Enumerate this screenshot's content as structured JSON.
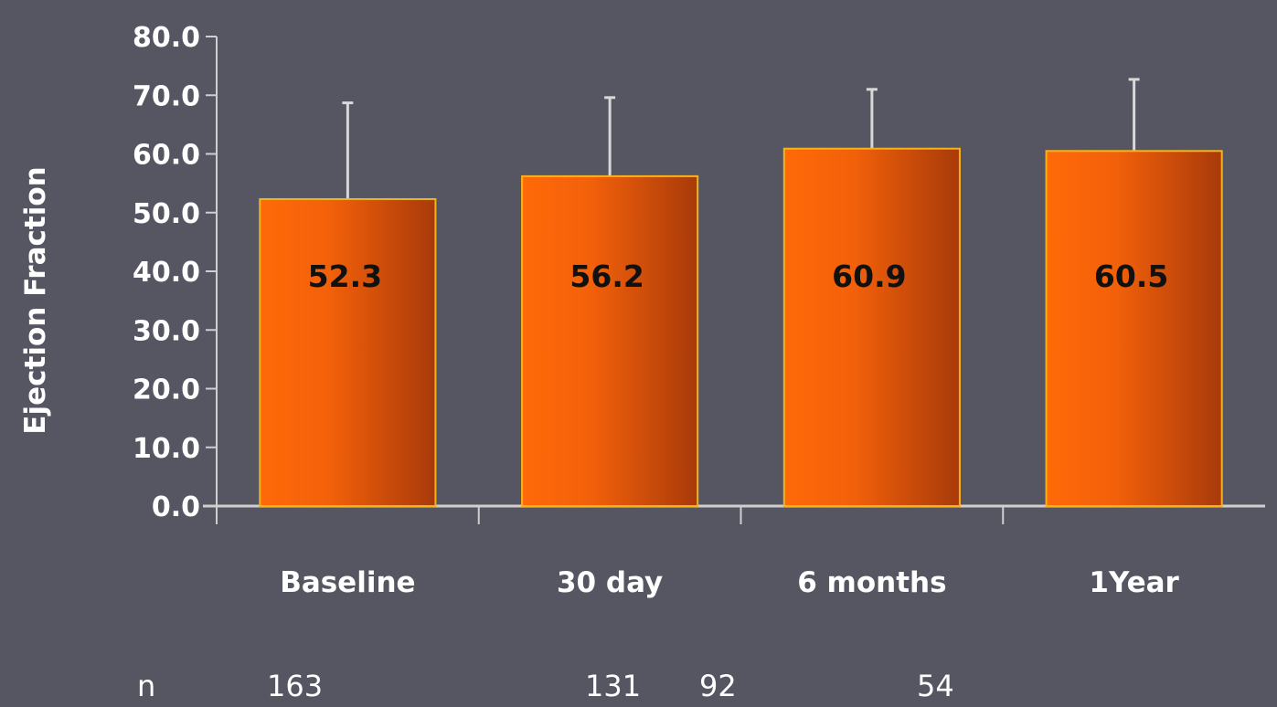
{
  "chart_data": {
    "type": "bar",
    "ylabel": "Ejection Fraction",
    "categories": [
      "Baseline",
      "30 day",
      "6 months",
      "1Year"
    ],
    "values": [
      52.3,
      56.2,
      60.9,
      60.5
    ],
    "value_labels": [
      "52.3",
      "56.2",
      "60.9",
      "60.5"
    ],
    "error_upper": [
      68.7,
      69.6,
      71.0,
      72.7
    ],
    "ylim": [
      0,
      80
    ],
    "yticks": [
      "0.0",
      "10.0",
      "20.0",
      "30.0",
      "40.0",
      "50.0",
      "60.0",
      "70.0",
      "80.0"
    ],
    "grid": false,
    "bar_color": "#f2600a",
    "error_bar_color": "#d8d8d8",
    "axis_color": "#cfcfcf"
  },
  "footer": {
    "n_label": "n",
    "n_values": [
      "163",
      "131",
      "92",
      "54"
    ]
  },
  "colors": {
    "background": "#555662",
    "text": "#ffffff"
  }
}
